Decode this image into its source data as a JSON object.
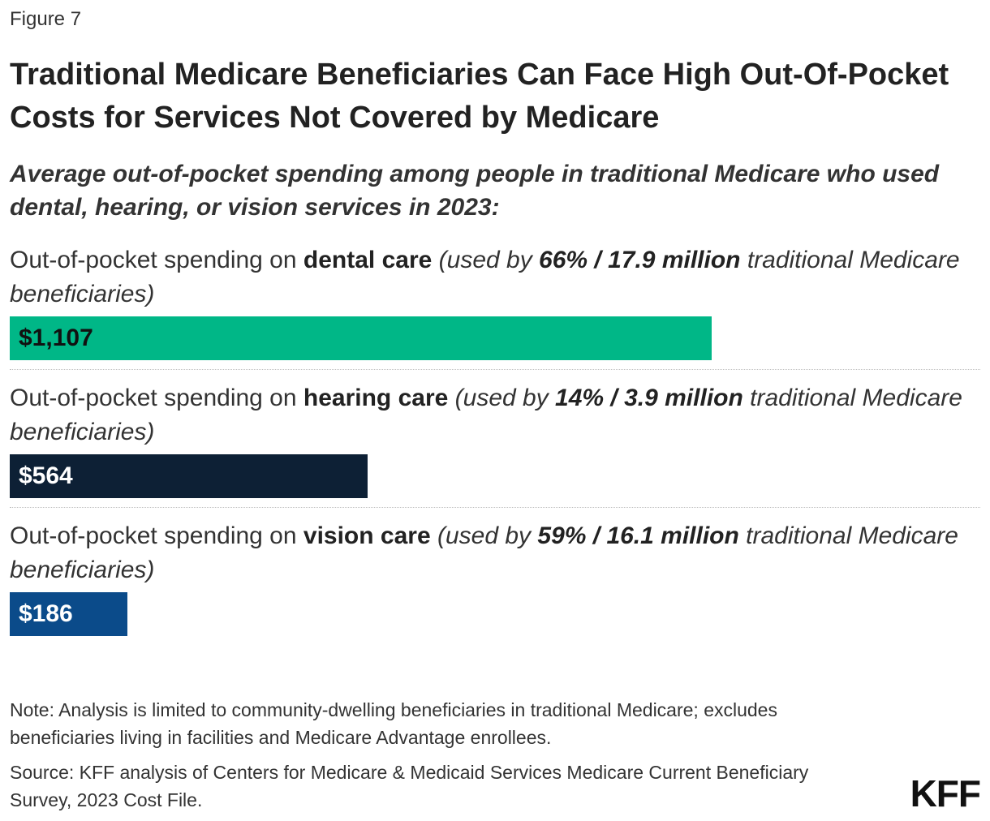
{
  "figure_label": "Figure 7",
  "title": "Traditional Medicare Beneficiaries Can Face High Out-Of-Pocket Costs for Services Not Covered by Medicare",
  "subtitle": "Average out-of-pocket spending among people in traditional Medicare who used dental, hearing, or vision services in 2023:",
  "chart_data": {
    "type": "bar",
    "orientation": "horizontal",
    "xlim": [
      0,
      1500
    ],
    "categories": [
      {
        "prefix": "Out-of-pocket spending on ",
        "service": "dental care",
        "used_by_intro": " (used by ",
        "used_by_share": "66% / 17.9 million",
        "used_by_outro": " traditional Medicare beneficiaries)"
      },
      {
        "prefix": "Out-of-pocket spending on ",
        "service": "hearing care",
        "used_by_intro": " (used by ",
        "used_by_share": "14% / 3.9 million",
        "used_by_outro": " traditional Medicare beneficiaries)"
      },
      {
        "prefix": "Out-of-pocket spending on ",
        "service": "vision care",
        "used_by_intro": " (used by ",
        "used_by_share": "59% / 16.1 million",
        "used_by_outro": " traditional Medicare beneficiaries)"
      }
    ],
    "values": [
      1107,
      564,
      186
    ],
    "value_labels": [
      "$1,107",
      "$564",
      "$186"
    ],
    "colors": [
      "#00b787",
      "#0d2035",
      "#0b4b8a"
    ],
    "label_colors": [
      "#111111",
      "#ffffff",
      "#ffffff"
    ]
  },
  "note": "Note: Analysis is limited to community-dwelling beneficiaries in traditional Medicare; excludes beneficiaries living in facilities and Medicare Advantage enrollees.",
  "source": "Source: KFF analysis of Centers for Medicare & Medicaid Services Medicare Current Beneficiary Survey, 2023 Cost File.",
  "logo_text": "KFF"
}
